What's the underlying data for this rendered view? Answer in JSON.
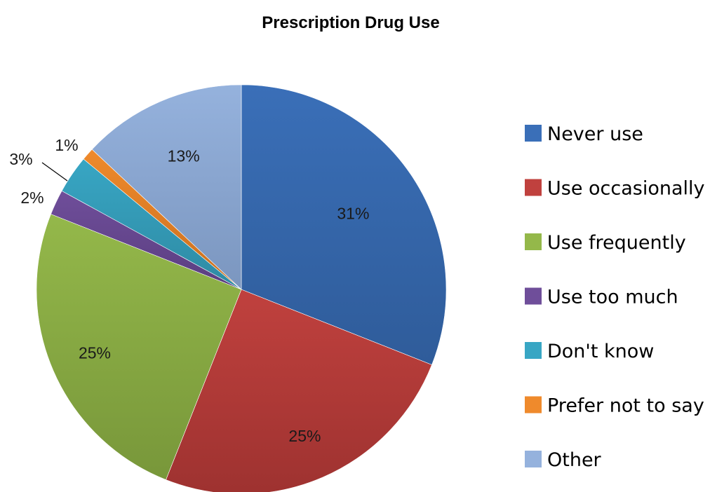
{
  "chart_data": {
    "type": "pie",
    "title": "Prescription Drug Use",
    "legend_position": "right",
    "start_angle_deg": 0,
    "direction": "clockwise",
    "slices": [
      {
        "name": "Never use",
        "value": 31,
        "label": "31%",
        "color": "#3A6FB8",
        "shade": "#2F5C9A"
      },
      {
        "name": "Use occasionally",
        "value": 25,
        "label": "25%",
        "color": "#C0413E",
        "shade": "#9E3230"
      },
      {
        "name": "Use frequently",
        "value": 25,
        "label": "25%",
        "color": "#94B84A",
        "shade": "#78973A"
      },
      {
        "name": "Use too much",
        "value": 2,
        "label": "2%",
        "color": "#6F4E9A",
        "shade": "#5A3E80"
      },
      {
        "name": "Don't know",
        "value": 3,
        "label": "3%",
        "color": "#38A6C4",
        "shade": "#2E8AA3"
      },
      {
        "name": "Prefer not to say",
        "value": 1,
        "label": "1%",
        "color": "#EF8A2C",
        "shade": "#C96F1F"
      },
      {
        "name": "Other",
        "value": 13,
        "label": "13%",
        "color": "#95B2DD",
        "shade": "#7B96BF"
      }
    ]
  }
}
